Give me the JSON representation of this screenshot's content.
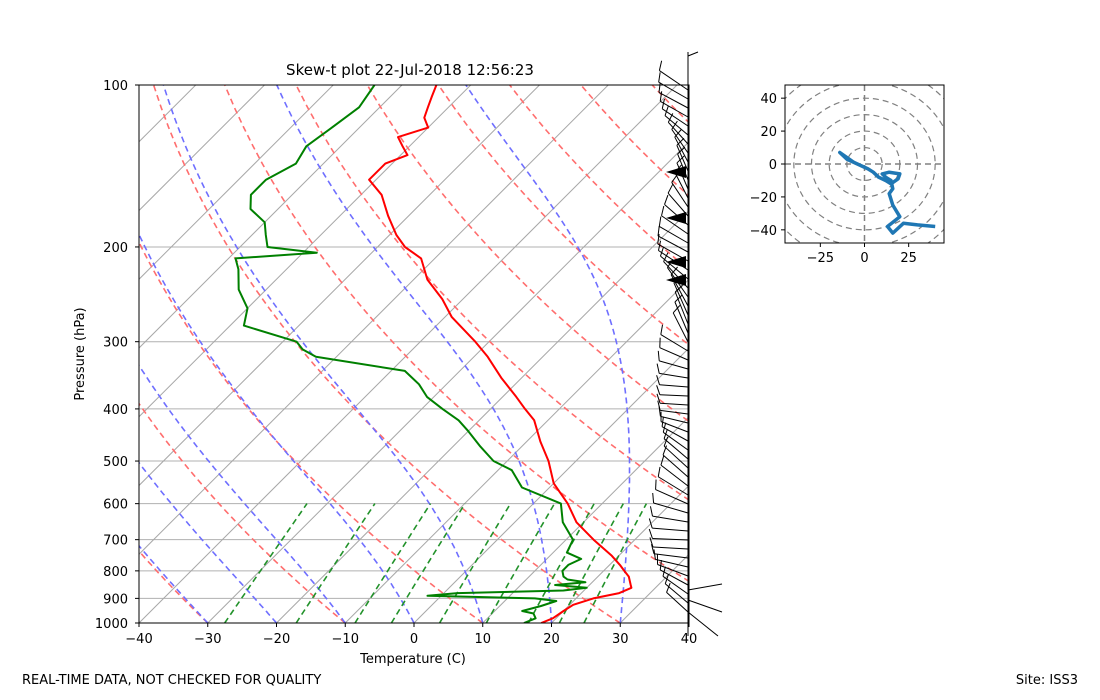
{
  "chart_data": [
    {
      "type": "skewt",
      "title": "Skew-t plot 22-Jul-2018 12:56:23",
      "xlabel": "Temperature (C)",
      "ylabel": "Pressure (hPa)",
      "xlim": [
        -40,
        40
      ],
      "ylim": [
        1000,
        100
      ],
      "x_ticks": [
        -40,
        -30,
        -20,
        -10,
        0,
        10,
        20,
        30,
        40
      ],
      "x_tick_labels": [
        "−40",
        "−30",
        "−20",
        "−10",
        "0",
        "10",
        "20",
        "30",
        "40"
      ],
      "y_ticks": [
        1000,
        900,
        800,
        700,
        600,
        500,
        400,
        300,
        200,
        100
      ],
      "y_tick_labels": [
        "1000",
        "900",
        "800",
        "700",
        "600",
        "500",
        "400",
        "300",
        "200",
        "100"
      ],
      "series": [
        {
          "name": "temperature",
          "color": "#ff0000",
          "pressure": [
            1000,
            980,
            950,
            925,
            900,
            880,
            860,
            850,
            820,
            800,
            780,
            750,
            700,
            650,
            600,
            550,
            500,
            460,
            420,
            400,
            380,
            350,
            320,
            300,
            270,
            250,
            230,
            210,
            200,
            190,
            175,
            160,
            150,
            140,
            135,
            130,
            125,
            120,
            115,
            110,
            105,
            100
          ],
          "values": [
            18.5,
            19.5,
            20,
            20.5,
            22.5,
            25.5,
            26.5,
            26,
            24.5,
            23,
            21.5,
            19,
            14,
            9,
            5,
            0,
            -4,
            -8,
            -12,
            -15,
            -18,
            -23,
            -28,
            -32,
            -39,
            -43,
            -48,
            -52,
            -56,
            -59,
            -63,
            -67,
            -71,
            -71,
            -69,
            -71,
            -73,
            -70,
            -72,
            -73,
            -74,
            -75
          ]
        },
        {
          "name": "dewpoint",
          "color": "#008000",
          "pressure": [
            1000,
            980,
            960,
            950,
            930,
            910,
            900,
            890,
            880,
            870,
            860,
            850,
            840,
            830,
            820,
            800,
            780,
            760,
            740,
            700,
            650,
            600,
            560,
            520,
            500,
            470,
            440,
            420,
            400,
            380,
            360,
            340,
            320,
            310,
            300,
            280,
            260,
            240,
            220,
            210,
            205,
            200,
            190,
            180,
            170,
            160,
            150,
            140,
            130,
            120,
            110,
            100
          ],
          "values": [
            16,
            17,
            16,
            14,
            16,
            17.5,
            14,
            -2,
            2,
            17,
            20,
            15,
            19,
            16,
            15,
            14,
            14,
            15,
            12,
            11,
            7,
            4,
            -4,
            -8,
            -12,
            -16,
            -20,
            -23,
            -27,
            -31,
            -34,
            -38,
            -53,
            -56,
            -58,
            -68,
            -70,
            -74,
            -77,
            -79,
            -68,
            -76,
            -78,
            -80,
            -84,
            -86,
            -86,
            -84,
            -85,
            -84,
            -83,
            -84
          ]
        }
      ],
      "hodograph": {
        "xlim": [
          -45,
          45
        ],
        "ylim": [
          -48,
          48
        ],
        "x_ticks": [
          -25,
          0,
          25
        ],
        "x_tick_labels": [
          "−25",
          "0",
          "25"
        ],
        "y_ticks": [
          -40,
          -20,
          0,
          20,
          40
        ],
        "y_tick_labels": [
          "−40",
          "−20",
          "0",
          "20",
          "40"
        ],
        "rings": [
          10,
          20,
          30,
          40,
          50,
          60
        ],
        "color": "#1f77b4",
        "u": [
          40,
          30,
          22,
          16,
          13,
          20,
          16,
          14,
          16,
          15,
          12,
          10,
          14,
          20,
          19,
          15,
          12,
          8,
          5,
          2,
          -4,
          -10,
          -14,
          -10,
          -6,
          0
        ],
        "v": [
          -38,
          -37,
          -36,
          -42,
          -38,
          -32,
          -25,
          -18,
          -15,
          -10,
          -8,
          -6,
          -5,
          -6,
          -9,
          -12,
          -10,
          -8,
          -5,
          -3,
          0,
          3,
          7,
          4,
          1,
          -2
        ]
      }
    }
  ],
  "footer": {
    "left": "REAL-TIME DATA, NOT CHECKED FOR QUALITY",
    "right": "Site: ISS3"
  }
}
